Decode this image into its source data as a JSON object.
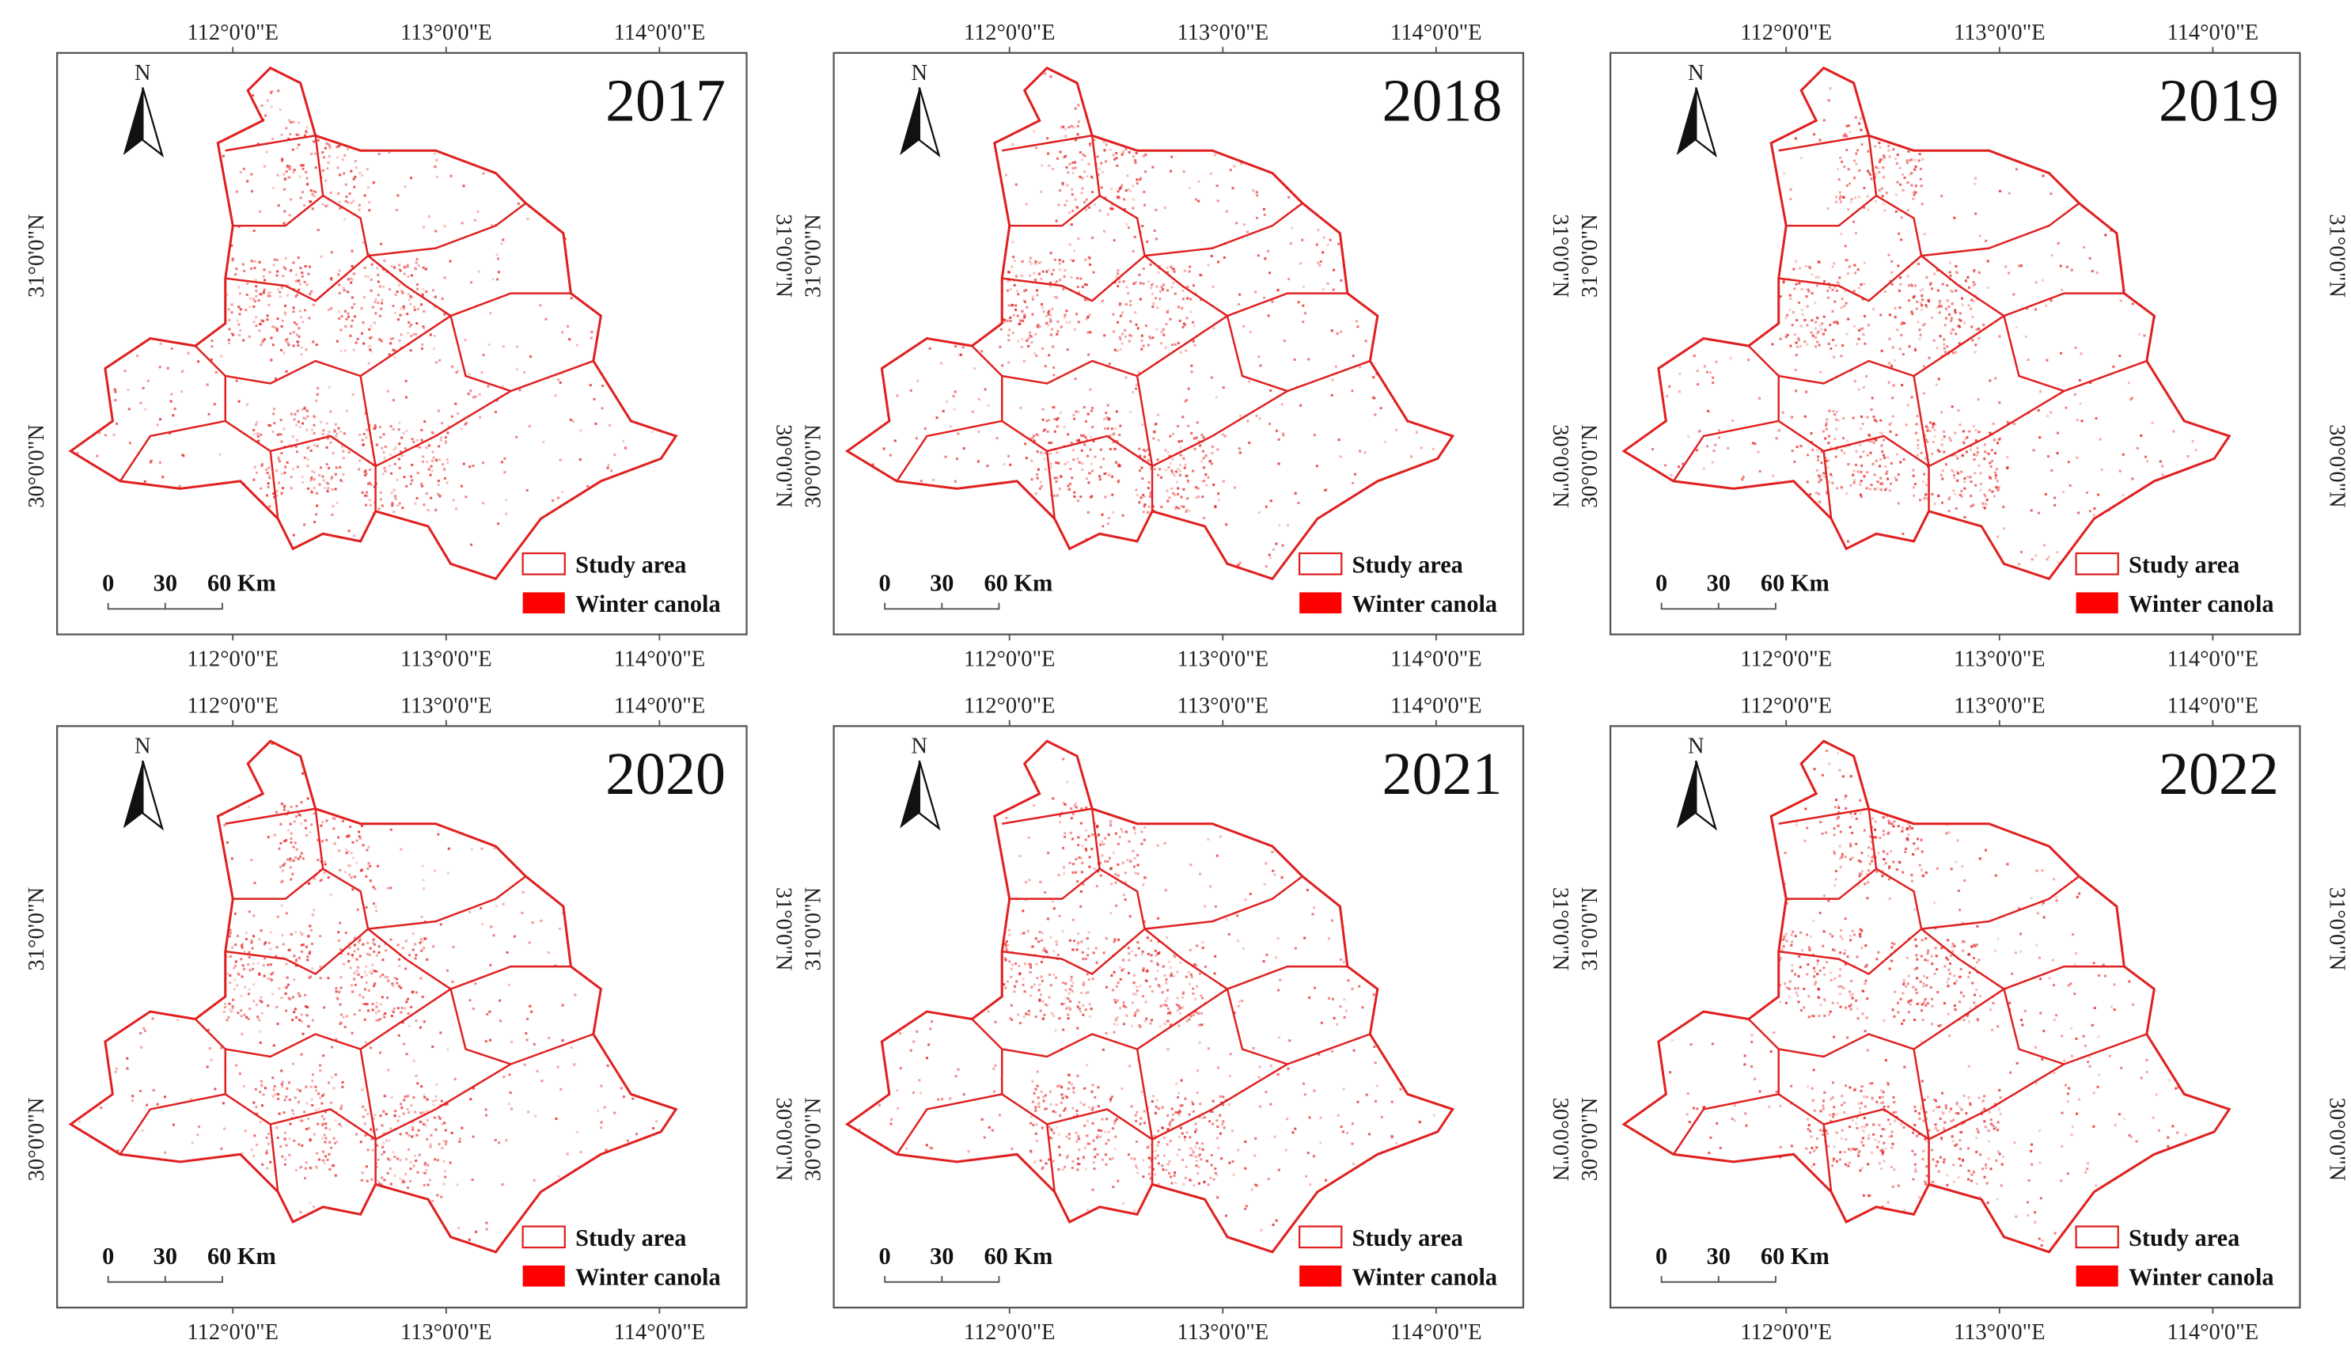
{
  "panels": [
    {
      "year": "2017"
    },
    {
      "year": "2018"
    },
    {
      "year": "2019"
    },
    {
      "year": "2020"
    },
    {
      "year": "2021"
    },
    {
      "year": "2022"
    }
  ],
  "lon_labels": [
    "112°0'0\"E",
    "113°0'0\"E",
    "114°0'0\"E"
  ],
  "lat_labels": [
    "31°0'0\"N",
    "30°0'0\"N"
  ],
  "north": "N",
  "scale_labels": [
    "0",
    "30",
    "60 Km"
  ],
  "legend": [
    "Study area",
    "Winter canola"
  ]
}
